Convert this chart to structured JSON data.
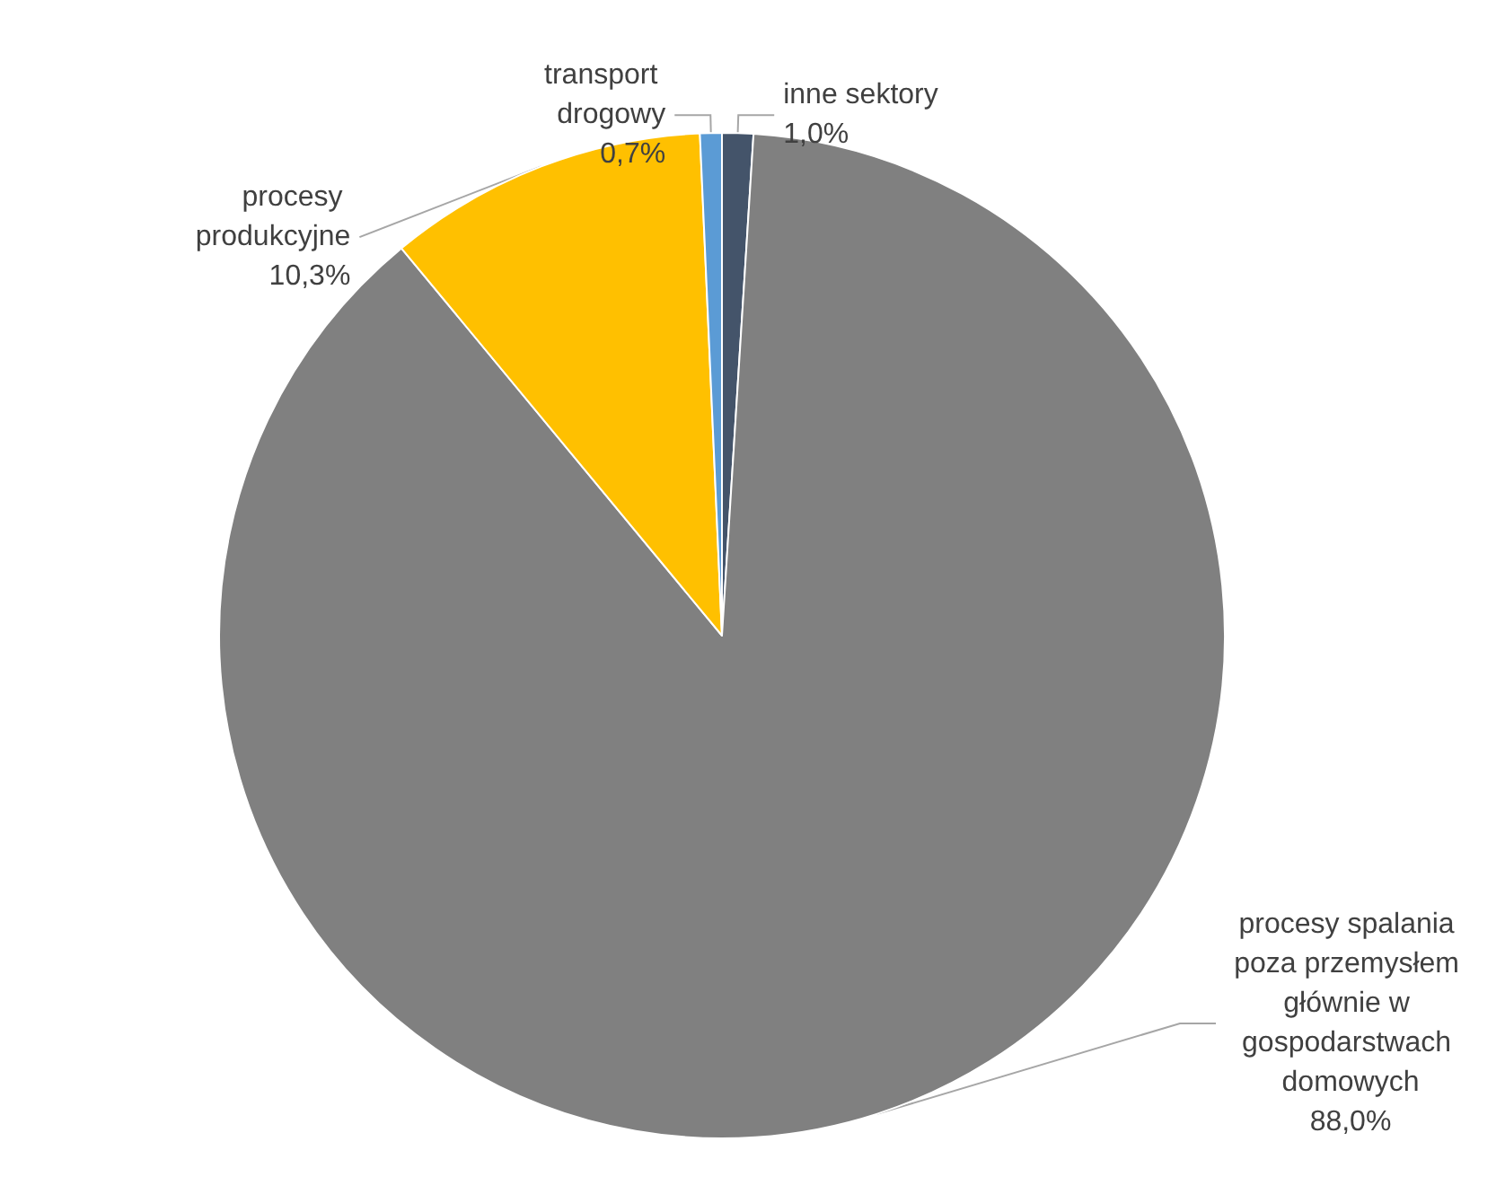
{
  "chart_data": {
    "type": "pie",
    "categories": [
      "inne sektory",
      "procesy spalania poza przemysłem głównie w gospodarstwach domowych",
      "procesy produkcyjne",
      "transport drogowy"
    ],
    "values": [
      1.0,
      88.0,
      10.3,
      0.7
    ],
    "value_labels": [
      "1,0%",
      "88,0%",
      "10,3%",
      "0,7%"
    ],
    "colors": [
      "#44546a",
      "#808080",
      "#ffc000",
      "#5b9bd5"
    ],
    "legend": false
  }
}
